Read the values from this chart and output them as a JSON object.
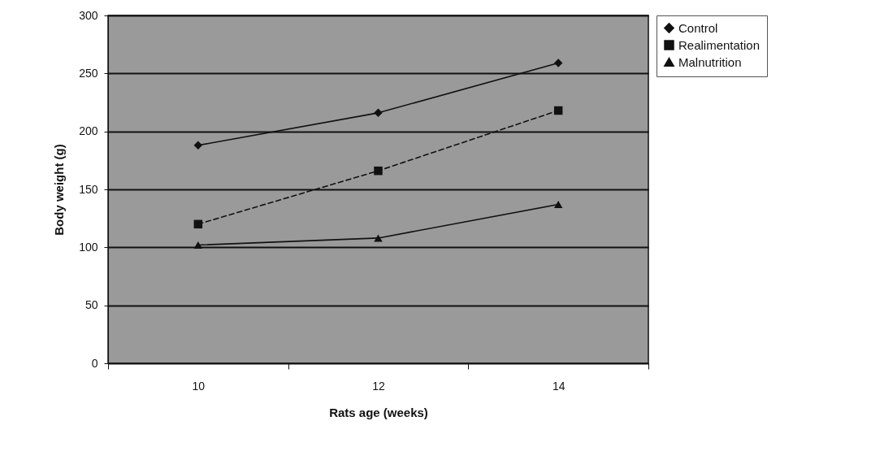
{
  "chart_data": {
    "type": "line",
    "xlabel": "Rats age (weeks)",
    "ylabel": "Body weight (g)",
    "categories": [
      "10",
      "12",
      "14"
    ],
    "series": [
      {
        "name": "Control",
        "color": "#111111",
        "marker": "diamond",
        "line_style": "solid",
        "values": [
          188,
          216,
          259
        ]
      },
      {
        "name": "Realimentation",
        "color": "#111111",
        "marker": "square",
        "line_style": "dashed",
        "values": [
          120,
          166,
          218
        ]
      },
      {
        "name": "Malnutrition",
        "color": "#111111",
        "marker": "triangle",
        "line_style": "solid",
        "values": [
          102,
          108,
          137
        ]
      }
    ],
    "ylim": [
      0,
      300
    ],
    "yticks": [
      0,
      50,
      100,
      150,
      200,
      250,
      300
    ],
    "grid": "y",
    "legend": "right"
  }
}
